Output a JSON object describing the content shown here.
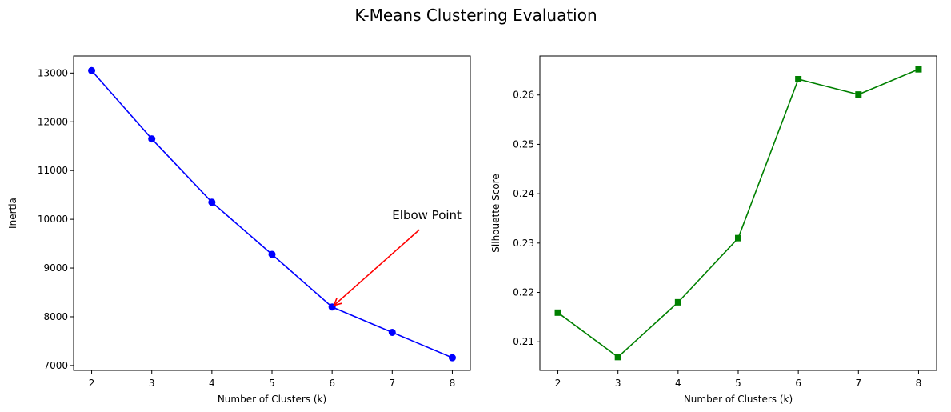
{
  "figure": {
    "title": "K-Means Clustering Evaluation"
  },
  "chart_data": [
    {
      "type": "line",
      "title": "",
      "xlabel": "Number of Clusters (k)",
      "ylabel": "Inertia",
      "x": [
        2,
        3,
        4,
        5,
        6,
        7,
        8
      ],
      "xlim": [
        1.7,
        8.3
      ],
      "ylim": [
        6900,
        13350
      ],
      "xticks": [
        2,
        3,
        4,
        5,
        6,
        7,
        8
      ],
      "yticks": [
        7000,
        8000,
        9000,
        10000,
        11000,
        12000,
        13000
      ],
      "grid": false,
      "series": [
        {
          "values": [
            13050,
            11650,
            10350,
            9280,
            8200,
            7680,
            7160
          ],
          "color": "#0000ff",
          "marker": "circle"
        }
      ],
      "annotations": [
        {
          "text": "Elbow Point",
          "point": [
            6,
            8200
          ],
          "text_at": [
            7,
            10000
          ],
          "arrow_color": "#ff0000"
        }
      ]
    },
    {
      "type": "line",
      "title": "",
      "xlabel": "Number of Clusters (k)",
      "ylabel": "Silhouette Score",
      "x": [
        2,
        3,
        4,
        5,
        6,
        7,
        8
      ],
      "xlim": [
        1.7,
        8.3
      ],
      "ylim": [
        0.2042,
        0.2679
      ],
      "xticks": [
        2,
        3,
        4,
        5,
        6,
        7,
        8
      ],
      "yticks": [
        0.21,
        0.22,
        0.23,
        0.24,
        0.25,
        0.26
      ],
      "ytick_labels": [
        "0.21",
        "0.22",
        "0.23",
        "0.24",
        "0.25",
        "0.26"
      ],
      "grid": false,
      "series": [
        {
          "values": [
            0.2159,
            0.2069,
            0.218,
            0.231,
            0.2632,
            0.2601,
            0.2652
          ],
          "color": "#008000",
          "marker": "square"
        }
      ]
    }
  ]
}
